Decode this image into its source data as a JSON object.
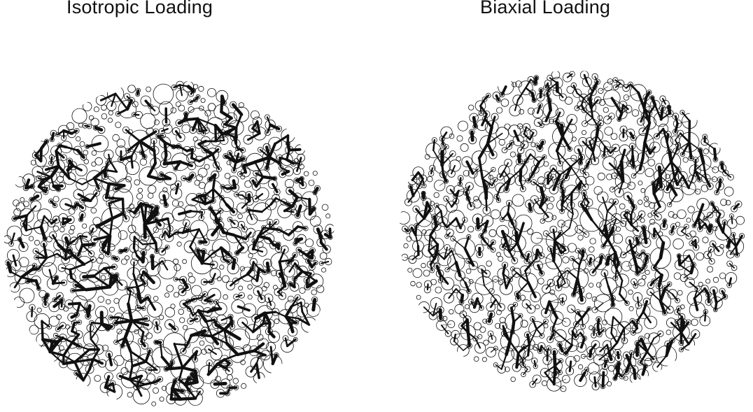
{
  "panels": [
    {
      "title": "Isotropic Loading",
      "loading": "isotropic"
    },
    {
      "title": "Biaxial Loading",
      "loading": "biaxial"
    }
  ],
  "colors": {
    "ink": "#111111",
    "background": "#ffffff"
  }
}
